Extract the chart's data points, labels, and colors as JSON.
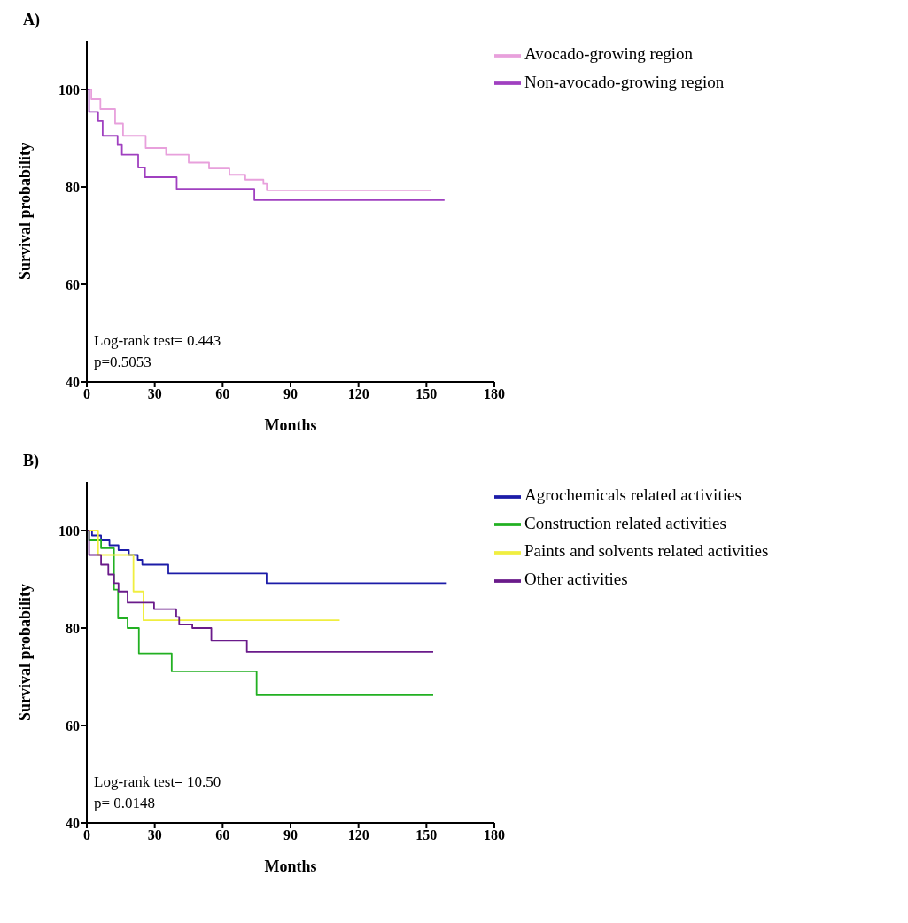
{
  "chart_data": [
    {
      "type": "step",
      "title": "A)",
      "xlabel": "Months",
      "ylabel": "Survival probability",
      "xlim": [
        0,
        180
      ],
      "xticks": [
        0,
        30,
        60,
        90,
        120,
        150,
        180
      ],
      "ylim": [
        40,
        110
      ],
      "yticks": [
        40,
        60,
        80,
        100
      ],
      "legend": "right",
      "annotations": [
        "Log-rank test= 0.443",
        "p=0.5053"
      ],
      "series": [
        {
          "name": "Avocado-growing region",
          "color": "#e8a0dc",
          "x": [
            0,
            2,
            6,
            12.5,
            16,
            26,
            35,
            45,
            54,
            63,
            70,
            78,
            79.5,
            152
          ],
          "values": [
            100,
            98,
            96,
            93,
            90.5,
            88,
            86.6,
            85,
            83.8,
            82.5,
            81.5,
            80.6,
            79.3,
            79.3
          ]
        },
        {
          "name": "Non-avocado-growing region",
          "color": "#a040c0",
          "x": [
            0,
            1,
            5,
            7,
            13.6,
            15.5,
            22.7,
            25.7,
            39.7,
            74,
            158
          ],
          "values": [
            100,
            95.4,
            93.5,
            90.5,
            88.6,
            86.6,
            84,
            82,
            79.6,
            77.3,
            77.3
          ]
        }
      ]
    },
    {
      "type": "step",
      "title": "B)",
      "xlabel": "Months",
      "ylabel": "Survival probability",
      "xlim": [
        0,
        180
      ],
      "xticks": [
        0,
        30,
        60,
        90,
        120,
        150,
        180
      ],
      "ylim": [
        40,
        110
      ],
      "yticks": [
        40,
        60,
        80,
        100
      ],
      "legend": "right",
      "annotations": [
        "Log-rank test= 10.50",
        "p= 0.0148"
      ],
      "series": [
        {
          "name": "Agrochemicals related activities",
          "color": "#1c1ca8",
          "x": [
            0,
            2.3,
            6.3,
            10,
            14,
            18.6,
            22.5,
            24.5,
            36,
            79.4,
            159
          ],
          "values": [
            100,
            99,
            98,
            97,
            96,
            95,
            94,
            93,
            91.2,
            89.2,
            89.2
          ]
        },
        {
          "name": "Construction related activities",
          "color": "#22b022",
          "x": [
            0,
            1,
            6.3,
            12,
            13.8,
            18,
            23,
            37.5,
            75,
            153
          ],
          "values": [
            100,
            98,
            96.4,
            87.9,
            82,
            80,
            74.8,
            71.1,
            66.2,
            66.2
          ]
        },
        {
          "name": "Paints and solvents related activities",
          "color": "#f0ee40",
          "x": [
            0,
            5,
            20.6,
            25,
            111.7
          ],
          "values": [
            100,
            95,
            87.5,
            81.6,
            81.6
          ]
        },
        {
          "name": "Other activities",
          "color": "#6a1a8a",
          "x": [
            0,
            1,
            6.3,
            9.5,
            12,
            14,
            18,
            29.7,
            39.5,
            40.8,
            46.6,
            55,
            70.7,
            153
          ],
          "values": [
            100,
            95,
            93,
            91,
            89.2,
            87.5,
            85.2,
            83.9,
            82.3,
            80.7,
            80,
            77.4,
            75.1,
            75.1
          ]
        }
      ]
    }
  ]
}
